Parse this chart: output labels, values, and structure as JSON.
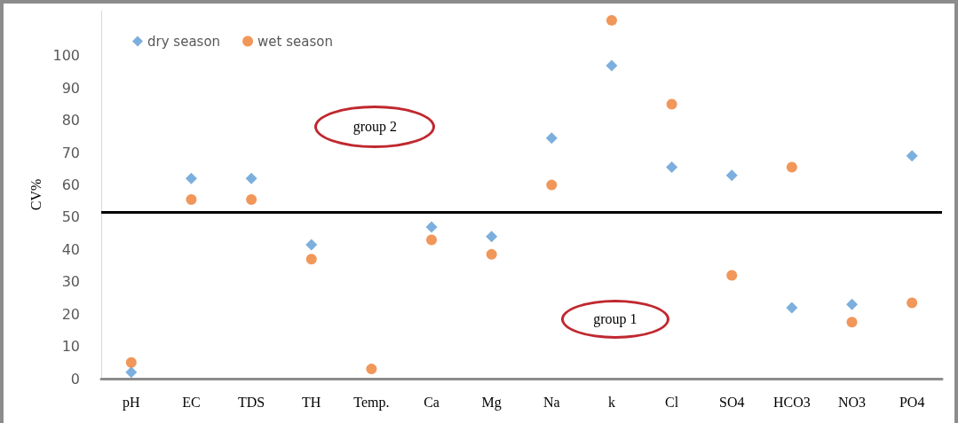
{
  "chart_data": {
    "type": "scatter",
    "ylabel": "CV%",
    "categories": [
      "pH",
      "EC",
      "TDS",
      "TH",
      "Temp.",
      "Ca",
      "Mg",
      "Na",
      "k",
      "Cl",
      "SO4",
      "HCO3",
      "NO3",
      "PO4"
    ],
    "series": [
      {
        "name": "dry season",
        "color": "#5b9bd5",
        "marker": "diamond",
        "values": [
          2,
          62,
          62,
          41.5,
          null,
          47,
          44,
          74.5,
          97,
          65.5,
          63,
          22,
          23,
          69
        ]
      },
      {
        "name": "wet season",
        "color": "#ed7d31",
        "marker": "circle",
        "values": [
          5,
          55.5,
          55.5,
          37,
          3,
          43,
          38.5,
          60,
          111,
          85,
          32,
          65.5,
          17.5,
          23.5
        ]
      }
    ],
    "ylim": [
      0,
      114
    ],
    "yticks": [
      0,
      10,
      20,
      30,
      40,
      50,
      60,
      70,
      80,
      90,
      100
    ],
    "ref_lines": [
      {
        "axis": "y",
        "value": 51.5,
        "label": null,
        "color": "#000000"
      }
    ],
    "annotations": [
      "group 2",
      "group 1"
    ],
    "grid": false,
    "legend": "top left"
  }
}
